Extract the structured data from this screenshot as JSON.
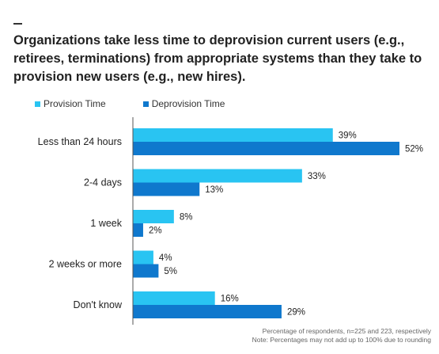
{
  "header": {
    "title": "Organizations take less time to deprovision current users (e.g., retirees, terminations) from appropriate systems than they take to provision new users (e.g., new hires)."
  },
  "colors": {
    "provision": "#29c4f2",
    "deprovision": "#0f78cd",
    "axis": "#555555",
    "text": "#222222"
  },
  "chart_data": {
    "type": "bar",
    "orientation": "horizontal",
    "title": "Organizations take less time to deprovision current users (e.g., retirees, terminations) from appropriate systems than they take to provision new users (e.g., new hires).",
    "categories": [
      "Less than 24 hours",
      "2-4 days",
      "1 week",
      "2 weeks or more",
      "Don't know"
    ],
    "series": [
      {
        "name": "Provision Time",
        "values": [
          39,
          33,
          8,
          4,
          16
        ],
        "labels": [
          "39%",
          "33%",
          "8%",
          "4%",
          "16%"
        ],
        "color": "#29c4f2"
      },
      {
        "name": "Deprovision Time",
        "values": [
          52,
          13,
          2,
          5,
          29
        ],
        "labels": [
          "52%",
          "13%",
          "2%",
          "5%",
          "29%"
        ],
        "color": "#0f78cd"
      }
    ],
    "xlim": [
      0,
      52
    ],
    "grid": false,
    "legend": "top-left"
  },
  "footnote": {
    "line1": "Percentage of respondents, n=225 and 223, respectively",
    "line2": "Note: Percentages may not add up to 100% due to rounding"
  }
}
